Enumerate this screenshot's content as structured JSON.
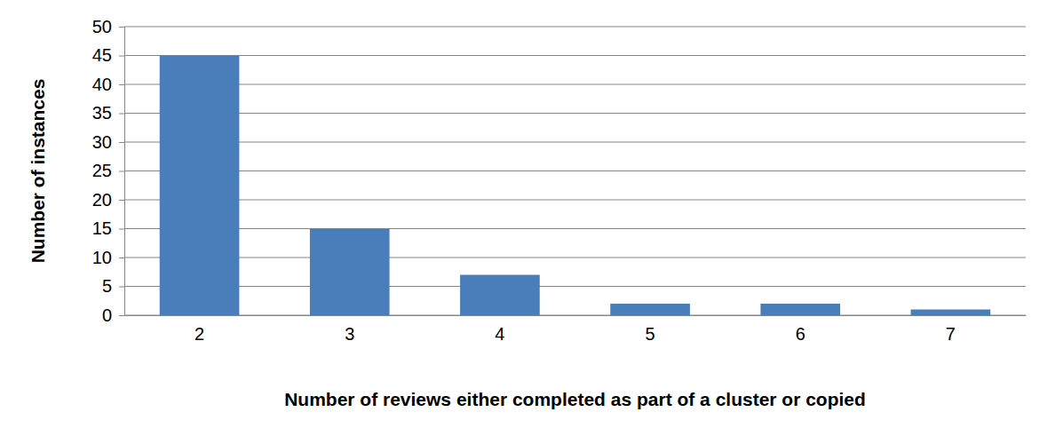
{
  "chart_data": {
    "type": "bar",
    "x_label": "Number of reviews either completed as part of a cluster or copied",
    "y_label": "Number of instances",
    "categories": [
      "2",
      "3",
      "4",
      "5",
      "6",
      "7"
    ],
    "values": [
      45,
      15,
      7,
      2,
      2,
      1
    ],
    "color": "#4a7ebb",
    "ylim": [
      0,
      50
    ],
    "yticks": [
      0,
      5,
      10,
      15,
      20,
      25,
      30,
      35,
      40,
      45,
      50
    ],
    "grid": true
  }
}
